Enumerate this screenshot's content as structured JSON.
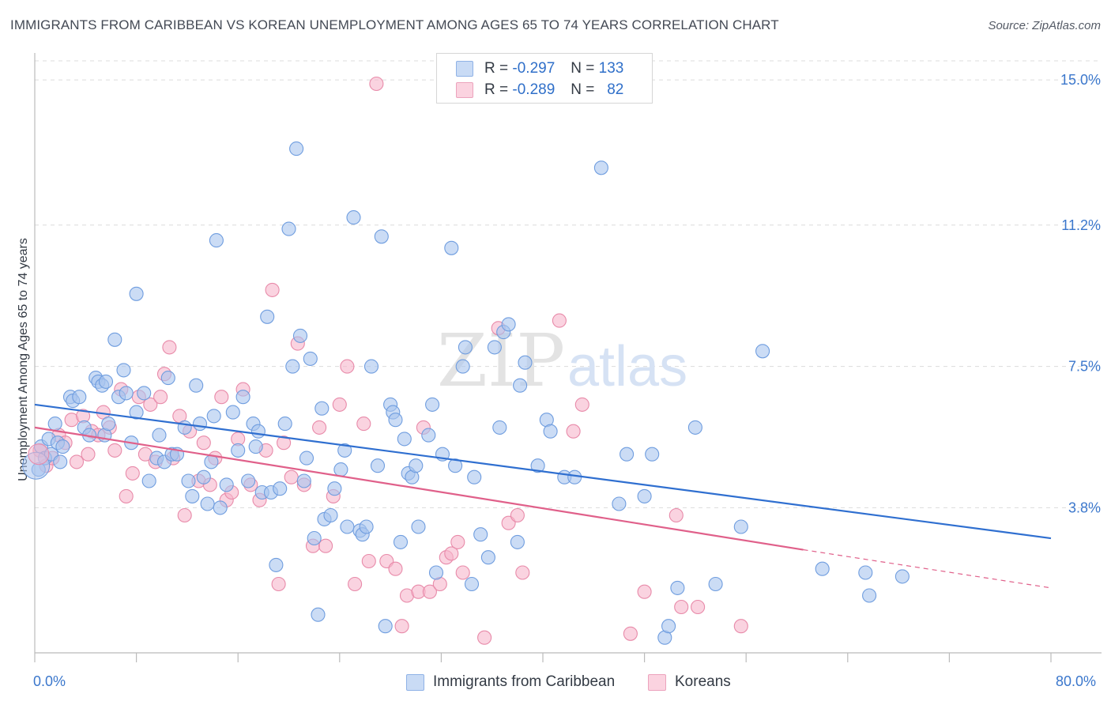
{
  "title": "IMMIGRANTS FROM CARIBBEAN VS KOREAN UNEMPLOYMENT AMONG AGES 65 TO 74 YEARS CORRELATION CHART",
  "source": "Source: ZipAtlas.com",
  "watermark": {
    "part1": "ZIP",
    "part2": "atlas"
  },
  "colors": {
    "blue_fill": "#a9c5ef",
    "blue_stroke": "#6f9ddf",
    "blue_line": "#2f6fd0",
    "pink_fill": "#f6b6cb",
    "pink_stroke": "#e88aa9",
    "pink_line": "#e0608a",
    "tick_label": "#3b77cc",
    "grid": "#dcdcdc"
  },
  "legend": {
    "rows": [
      {
        "r_label": "R =",
        "r_value": "-0.297",
        "n_label": "N =",
        "n_value": "133",
        "color": "#a9c5ef"
      },
      {
        "r_label": "R =",
        "r_value": "-0.289",
        "n_label": "N =",
        "n_value": "82",
        "color": "#f6b6cb"
      }
    ]
  },
  "bottom_legend": [
    {
      "label": "Immigrants from Caribbean",
      "color": "#a9c5ef"
    },
    {
      "label": "Koreans",
      "color": "#f6b6cb"
    }
  ],
  "chart_data": {
    "type": "scatter",
    "title": "IMMIGRANTS FROM CARIBBEAN VS KOREAN UNEMPLOYMENT AMONG AGES 65 TO 74 YEARS CORRELATION CHART",
    "xlabel": "",
    "ylabel": "Unemployment Among Ages 65 to 74 years",
    "xlim": [
      0,
      80
    ],
    "ylim": [
      0,
      15.5
    ],
    "x_tick_labels": [
      "0.0%",
      "80.0%"
    ],
    "y_ticks": [
      3.8,
      7.5,
      11.2,
      15.0
    ],
    "y_tick_labels": [
      "3.8%",
      "7.5%",
      "11.2%",
      "15.0%"
    ],
    "grid": true,
    "legend_position": "top-center",
    "series": [
      {
        "name": "Immigrants from Caribbean",
        "trend": {
          "x": [
            0,
            80
          ],
          "y": [
            6.5,
            3.0
          ]
        },
        "points": [
          [
            0.3,
            4.8
          ],
          [
            0.5,
            5.4
          ],
          [
            0.8,
            5.1
          ],
          [
            1.1,
            5.6
          ],
          [
            1.3,
            5.2
          ],
          [
            1.6,
            6.0
          ],
          [
            1.8,
            5.5
          ],
          [
            2.0,
            5.0
          ],
          [
            2.2,
            5.4
          ],
          [
            2.8,
            6.7
          ],
          [
            3.0,
            6.6
          ],
          [
            3.5,
            6.7
          ],
          [
            3.9,
            5.9
          ],
          [
            4.3,
            5.7
          ],
          [
            4.8,
            7.2
          ],
          [
            5.0,
            7.1
          ],
          [
            5.3,
            7.0
          ],
          [
            5.5,
            5.7
          ],
          [
            5.6,
            7.1
          ],
          [
            5.8,
            6.0
          ],
          [
            6.3,
            8.2
          ],
          [
            6.6,
            6.7
          ],
          [
            7.0,
            7.4
          ],
          [
            7.2,
            6.8
          ],
          [
            7.6,
            5.5
          ],
          [
            8.0,
            6.3
          ],
          [
            8.0,
            9.4
          ],
          [
            8.6,
            6.8
          ],
          [
            9.0,
            4.5
          ],
          [
            9.6,
            5.1
          ],
          [
            9.8,
            5.7
          ],
          [
            10.2,
            5.0
          ],
          [
            10.5,
            7.2
          ],
          [
            10.8,
            5.2
          ],
          [
            11.2,
            5.2
          ],
          [
            11.8,
            5.9
          ],
          [
            12.1,
            4.5
          ],
          [
            12.4,
            4.1
          ],
          [
            12.7,
            7.0
          ],
          [
            13.0,
            6.0
          ],
          [
            13.3,
            4.6
          ],
          [
            13.6,
            3.9
          ],
          [
            13.9,
            5.0
          ],
          [
            14.1,
            6.2
          ],
          [
            14.3,
            10.8
          ],
          [
            14.6,
            3.8
          ],
          [
            15.1,
            4.4
          ],
          [
            15.6,
            6.3
          ],
          [
            16.0,
            5.3
          ],
          [
            16.4,
            6.7
          ],
          [
            16.8,
            4.5
          ],
          [
            17.2,
            6.0
          ],
          [
            17.4,
            5.4
          ],
          [
            17.6,
            5.8
          ],
          [
            17.9,
            4.2
          ],
          [
            18.3,
            8.8
          ],
          [
            18.6,
            4.2
          ],
          [
            19.0,
            2.3
          ],
          [
            19.3,
            4.3
          ],
          [
            19.7,
            6.0
          ],
          [
            20.0,
            11.1
          ],
          [
            20.3,
            7.5
          ],
          [
            20.6,
            13.2
          ],
          [
            20.9,
            8.3
          ],
          [
            21.2,
            4.5
          ],
          [
            21.4,
            5.1
          ],
          [
            21.7,
            7.7
          ],
          [
            22.0,
            3.0
          ],
          [
            22.3,
            1.0
          ],
          [
            22.6,
            6.4
          ],
          [
            22.8,
            3.5
          ],
          [
            23.3,
            3.6
          ],
          [
            23.6,
            4.3
          ],
          [
            24.1,
            4.8
          ],
          [
            24.4,
            5.3
          ],
          [
            24.6,
            3.3
          ],
          [
            25.1,
            11.4
          ],
          [
            25.6,
            3.2
          ],
          [
            25.8,
            3.1
          ],
          [
            26.1,
            3.3
          ],
          [
            26.5,
            7.5
          ],
          [
            27.0,
            4.9
          ],
          [
            27.3,
            10.9
          ],
          [
            27.6,
            0.7
          ],
          [
            28.0,
            6.5
          ],
          [
            28.2,
            6.3
          ],
          [
            28.4,
            6.1
          ],
          [
            28.8,
            2.9
          ],
          [
            29.1,
            5.6
          ],
          [
            29.4,
            4.7
          ],
          [
            29.7,
            4.6
          ],
          [
            30.0,
            4.9
          ],
          [
            30.2,
            3.3
          ],
          [
            31.0,
            5.7
          ],
          [
            31.3,
            6.5
          ],
          [
            31.6,
            2.1
          ],
          [
            32.1,
            5.2
          ],
          [
            32.8,
            10.6
          ],
          [
            33.1,
            4.9
          ],
          [
            33.7,
            7.5
          ],
          [
            33.9,
            8.0
          ],
          [
            34.4,
            1.8
          ],
          [
            34.6,
            4.6
          ],
          [
            35.1,
            3.1
          ],
          [
            35.7,
            2.5
          ],
          [
            36.2,
            8.0
          ],
          [
            36.6,
            5.9
          ],
          [
            36.9,
            8.4
          ],
          [
            37.3,
            8.6
          ],
          [
            38.0,
            2.9
          ],
          [
            38.2,
            7.0
          ],
          [
            38.6,
            7.6
          ],
          [
            39.6,
            4.9
          ],
          [
            40.3,
            6.1
          ],
          [
            40.6,
            5.8
          ],
          [
            41.7,
            4.6
          ],
          [
            42.5,
            4.6
          ],
          [
            44.6,
            12.7
          ],
          [
            46.0,
            3.9
          ],
          [
            46.6,
            5.2
          ],
          [
            48.0,
            4.1
          ],
          [
            48.6,
            5.2
          ],
          [
            49.6,
            0.4
          ],
          [
            49.9,
            0.7
          ],
          [
            50.6,
            1.7
          ],
          [
            52.0,
            5.9
          ],
          [
            53.6,
            1.8
          ],
          [
            55.6,
            3.3
          ],
          [
            57.3,
            7.9
          ],
          [
            62.0,
            2.2
          ],
          [
            65.4,
            2.1
          ],
          [
            65.7,
            1.5
          ],
          [
            68.3,
            2.0
          ]
        ]
      },
      {
        "name": "Koreans",
        "trend": {
          "x": [
            0,
            60.5
          ],
          "y": [
            5.9,
            2.7
          ]
        },
        "trend_dashed": {
          "x": [
            60.5,
            80
          ],
          "y": [
            2.7,
            1.7
          ]
        },
        "points": [
          [
            0.4,
            5.3
          ],
          [
            0.9,
            4.9
          ],
          [
            1.4,
            5.1
          ],
          [
            1.9,
            5.7
          ],
          [
            2.4,
            5.5
          ],
          [
            2.9,
            6.1
          ],
          [
            3.3,
            5.0
          ],
          [
            3.8,
            6.2
          ],
          [
            4.2,
            5.2
          ],
          [
            4.5,
            5.8
          ],
          [
            5.0,
            5.7
          ],
          [
            5.4,
            6.3
          ],
          [
            5.9,
            5.9
          ],
          [
            6.3,
            5.3
          ],
          [
            6.8,
            6.9
          ],
          [
            7.2,
            4.1
          ],
          [
            7.7,
            4.7
          ],
          [
            8.2,
            6.7
          ],
          [
            8.7,
            5.2
          ],
          [
            9.1,
            6.5
          ],
          [
            9.5,
            5.0
          ],
          [
            9.9,
            6.7
          ],
          [
            10.2,
            7.3
          ],
          [
            10.6,
            8.0
          ],
          [
            10.9,
            5.1
          ],
          [
            11.4,
            6.2
          ],
          [
            11.8,
            3.6
          ],
          [
            12.2,
            5.8
          ],
          [
            12.9,
            4.5
          ],
          [
            13.3,
            5.5
          ],
          [
            13.8,
            4.4
          ],
          [
            14.2,
            5.1
          ],
          [
            14.7,
            6.7
          ],
          [
            15.1,
            4.0
          ],
          [
            15.5,
            4.2
          ],
          [
            16.0,
            5.6
          ],
          [
            16.4,
            6.9
          ],
          [
            17.0,
            4.4
          ],
          [
            17.7,
            4.0
          ],
          [
            18.2,
            5.3
          ],
          [
            18.7,
            9.5
          ],
          [
            19.2,
            1.8
          ],
          [
            19.6,
            5.5
          ],
          [
            20.2,
            4.6
          ],
          [
            20.7,
            8.1
          ],
          [
            21.2,
            4.4
          ],
          [
            21.9,
            2.8
          ],
          [
            22.4,
            5.9
          ],
          [
            22.9,
            2.8
          ],
          [
            23.5,
            4.1
          ],
          [
            24.0,
            6.5
          ],
          [
            24.6,
            7.5
          ],
          [
            25.2,
            1.8
          ],
          [
            25.9,
            6.0
          ],
          [
            26.3,
            2.4
          ],
          [
            26.9,
            14.9
          ],
          [
            27.7,
            2.4
          ],
          [
            28.4,
            2.2
          ],
          [
            28.9,
            0.7
          ],
          [
            29.3,
            1.5
          ],
          [
            30.2,
            1.6
          ],
          [
            30.6,
            5.9
          ],
          [
            31.1,
            1.6
          ],
          [
            31.9,
            1.8
          ],
          [
            32.4,
            2.5
          ],
          [
            32.8,
            2.6
          ],
          [
            33.3,
            2.9
          ],
          [
            33.7,
            2.1
          ],
          [
            35.4,
            0.4
          ],
          [
            36.5,
            8.5
          ],
          [
            37.3,
            3.4
          ],
          [
            38.0,
            3.6
          ],
          [
            38.4,
            2.1
          ],
          [
            41.3,
            8.7
          ],
          [
            42.4,
            5.8
          ],
          [
            43.1,
            6.5
          ],
          [
            46.9,
            0.5
          ],
          [
            48.0,
            1.6
          ],
          [
            50.5,
            3.6
          ],
          [
            50.9,
            1.2
          ],
          [
            52.2,
            1.2
          ],
          [
            55.6,
            0.7
          ]
        ]
      }
    ]
  }
}
